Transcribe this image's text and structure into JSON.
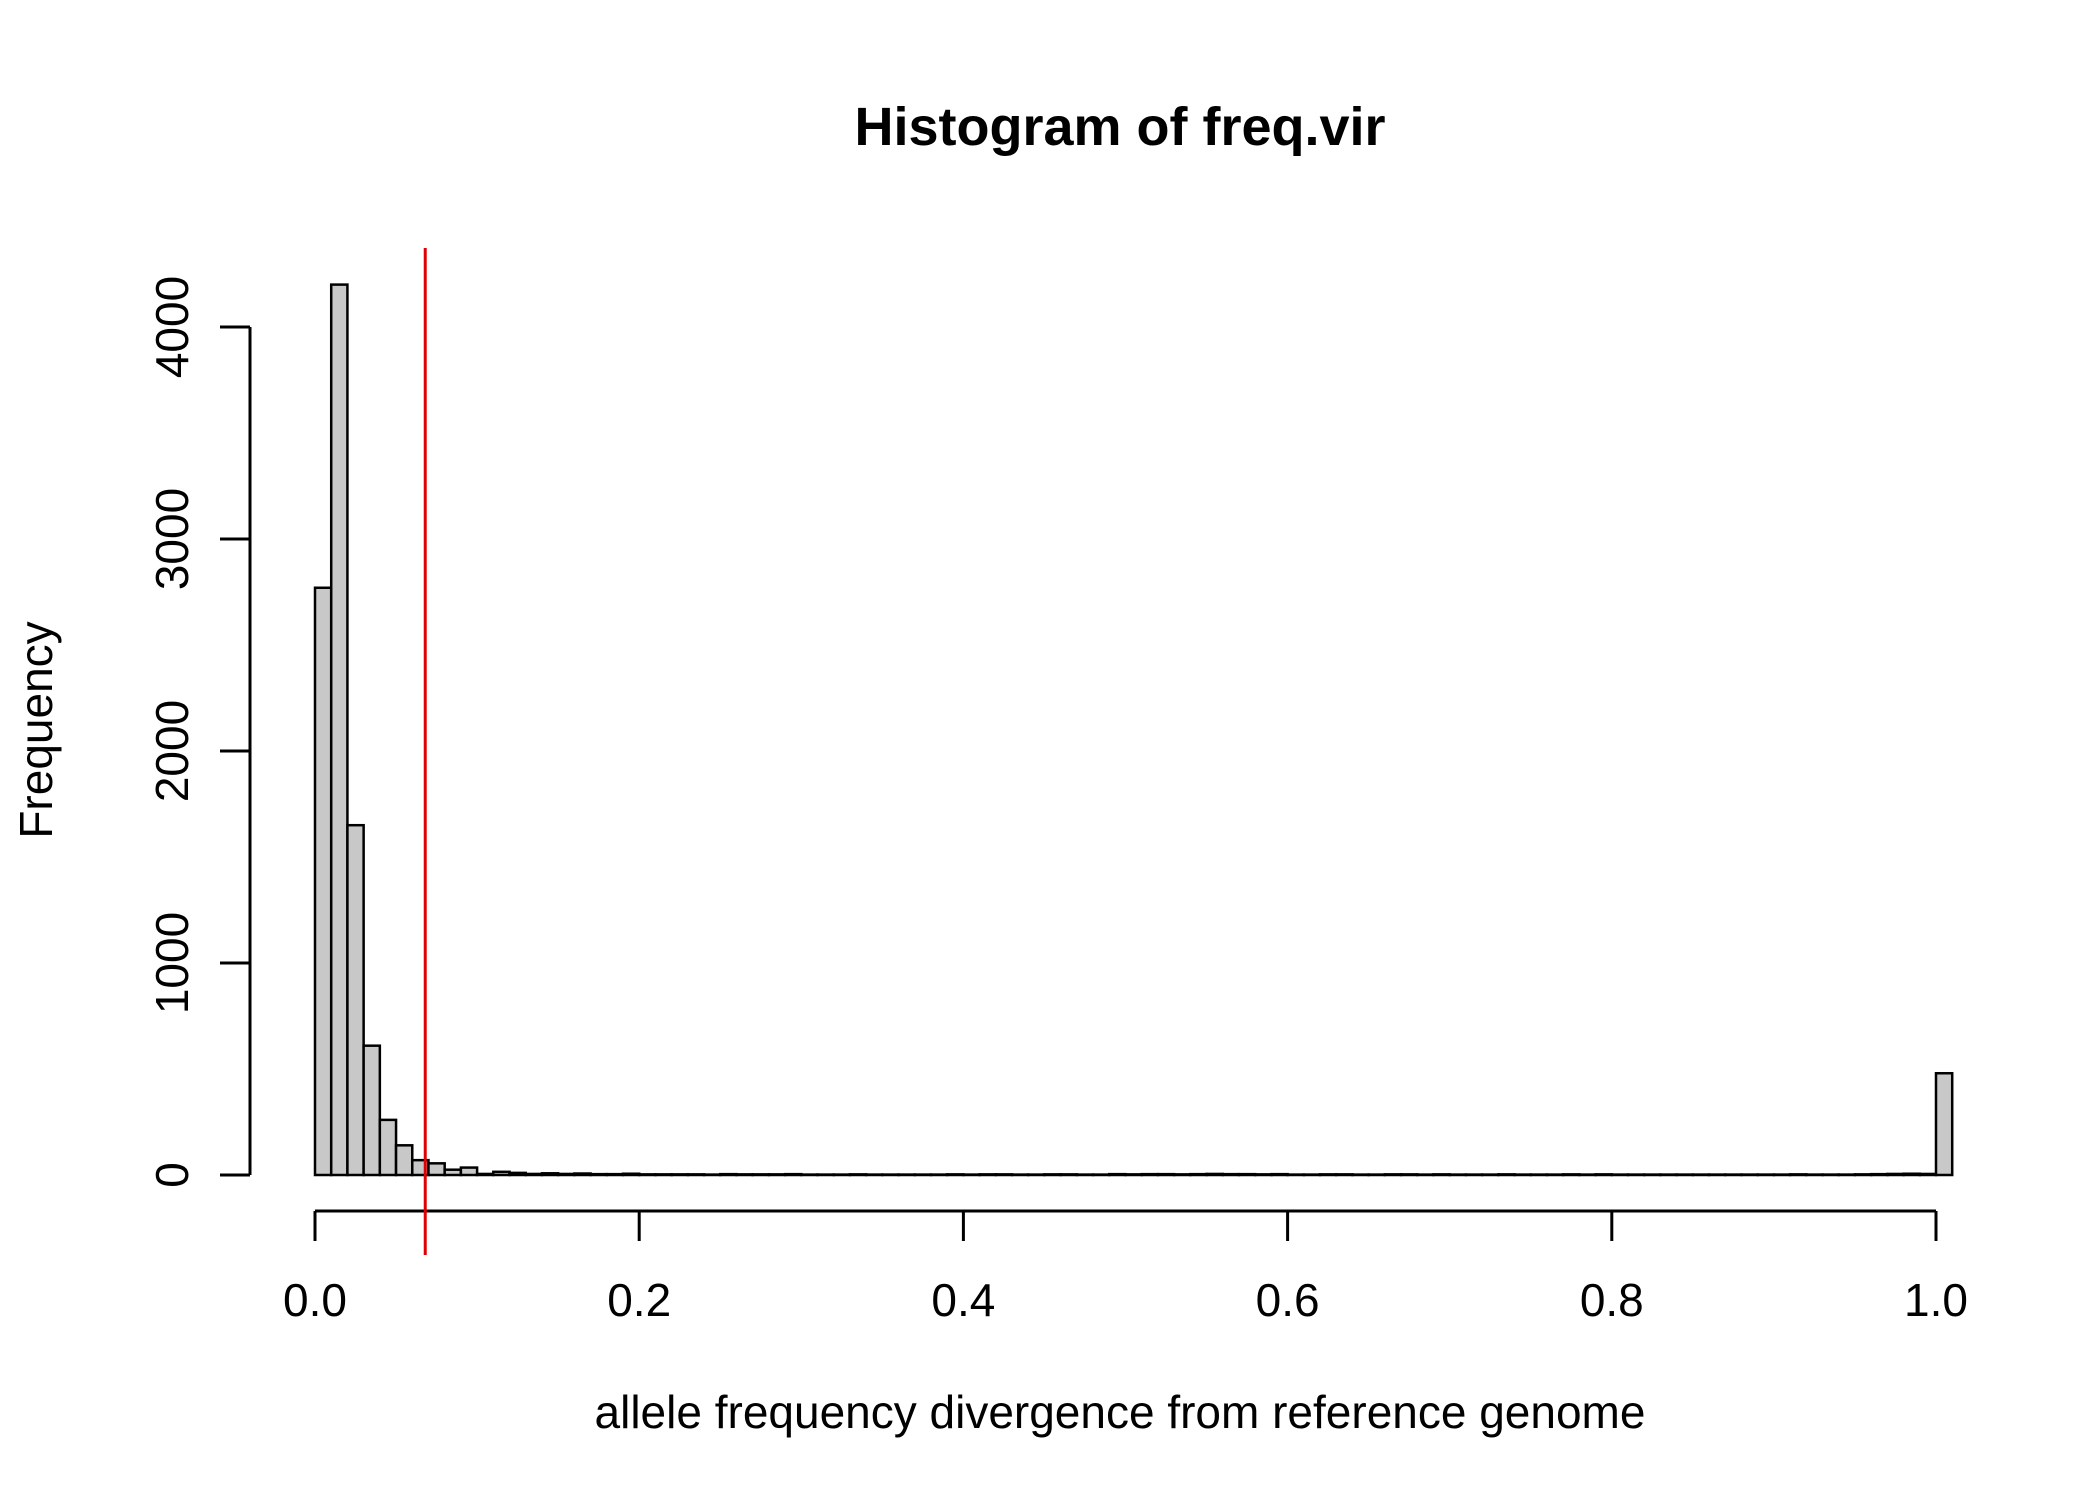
{
  "chart_data": {
    "type": "bar",
    "title": "Histogram of freq.vir",
    "xlabel": "allele frequency divergence from reference genome",
    "ylabel": "Frequency",
    "xlim": [
      0,
      1
    ],
    "ylim": [
      0,
      4000
    ],
    "x_ticks": [
      "0.0",
      "0.2",
      "0.4",
      "0.6",
      "0.8",
      "1.0"
    ],
    "x_tick_values": [
      0,
      0.2,
      0.4,
      0.6,
      0.8,
      1.0
    ],
    "y_ticks": [
      "0",
      "1000",
      "2000",
      "3000",
      "4000"
    ],
    "y_tick_values": [
      0,
      1000,
      2000,
      3000,
      4000
    ],
    "bin_width": 0.01,
    "values": [
      2770,
      4200,
      1650,
      610,
      260,
      140,
      70,
      55,
      25,
      35,
      5,
      15,
      10,
      5,
      8,
      5,
      7,
      4,
      4,
      6,
      3,
      3,
      3,
      3,
      2,
      4,
      3,
      3,
      3,
      4,
      2,
      2,
      2,
      3,
      2,
      2,
      2,
      2,
      2,
      3,
      2,
      3,
      3,
      2,
      2,
      3,
      3,
      2,
      2,
      4,
      3,
      4,
      4,
      3,
      4,
      5,
      4,
      4,
      3,
      4,
      2,
      2,
      3,
      3,
      2,
      2,
      3,
      3,
      2,
      3,
      2,
      2,
      2,
      3,
      2,
      2,
      2,
      3,
      2,
      3,
      2,
      2,
      2,
      2,
      2,
      2,
      2,
      2,
      2,
      2,
      2,
      3,
      2,
      2,
      2,
      3,
      4,
      5,
      6,
      5,
      480
    ],
    "reference_line": {
      "x": 0.068,
      "color": "#e00000"
    },
    "bar_fill": "#c8c8c8",
    "grid": false
  }
}
